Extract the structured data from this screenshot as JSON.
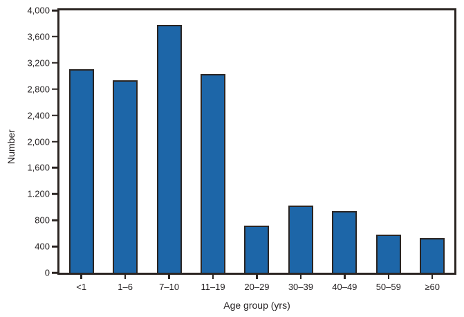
{
  "chart_data": {
    "type": "bar",
    "title": "",
    "xlabel": "Age group (yrs)",
    "ylabel": "Number",
    "categories": [
      "<1",
      "1–6",
      "7–10",
      "11–19",
      "20–29",
      "30–39",
      "40–49",
      "50–59",
      "≥60"
    ],
    "values": [
      3100,
      2930,
      3780,
      3030,
      720,
      1020,
      940,
      580,
      530
    ],
    "ylim": [
      0,
      4000
    ],
    "ytick_interval": 400,
    "ytick_labels_bottom_to_top": [
      "0",
      "400",
      "800",
      "1.200",
      "1,600",
      "2,000",
      "2,400",
      "2,800",
      "3,200",
      "3,600",
      "4,000"
    ],
    "grid": false,
    "legend_position": "none",
    "colors": {
      "bar_fill": "#1d66a8",
      "bar_border": "#2b2522",
      "axis": "#2b2522",
      "text": "#231f20",
      "background": "#ffffff"
    }
  }
}
